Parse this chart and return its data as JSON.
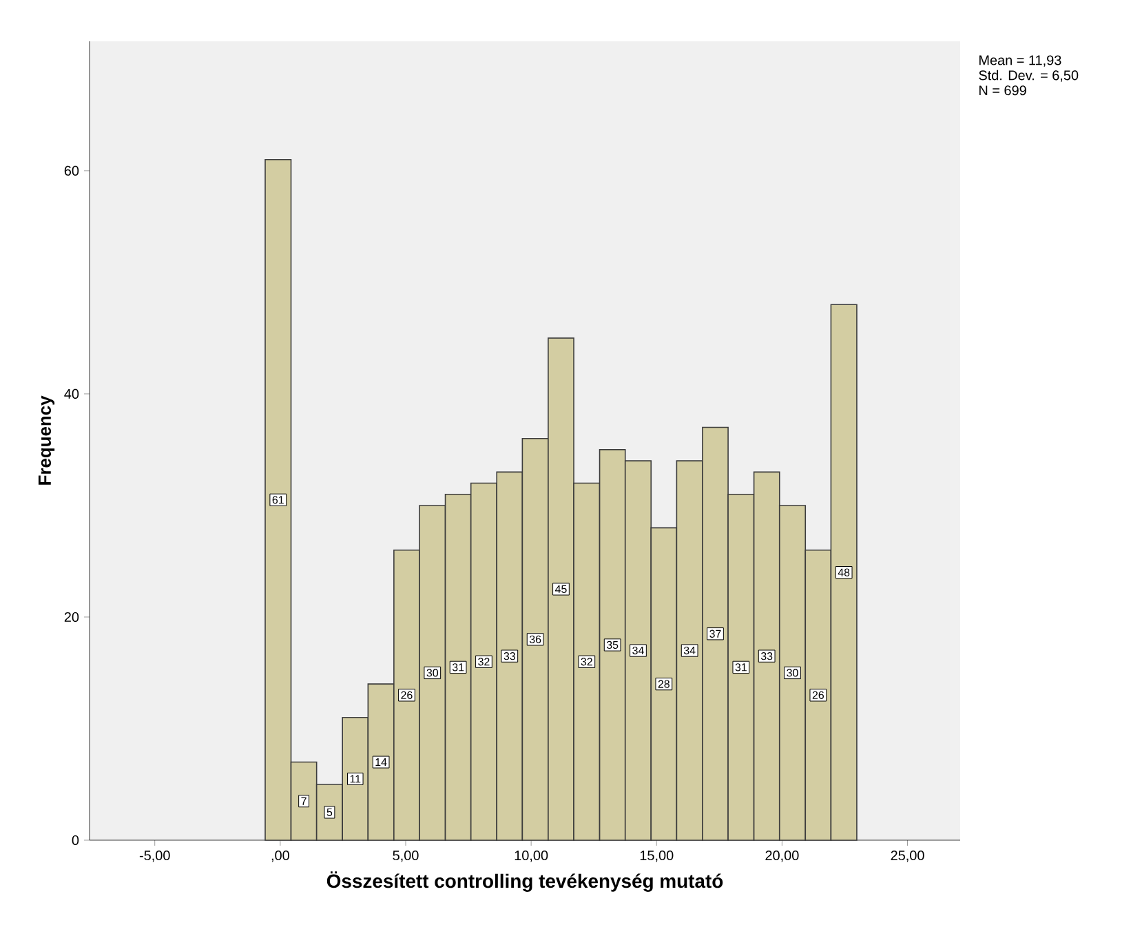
{
  "chart_data": {
    "type": "histogram",
    "xlabel": "Összesített controlling tevékenység mutató",
    "ylabel": "Frequency",
    "bins": [
      -0.6,
      0.43,
      1.45,
      2.48,
      3.5,
      4.53,
      5.55,
      6.58,
      7.6,
      8.63,
      9.65,
      10.68,
      11.7,
      12.73,
      13.75,
      14.78,
      15.8,
      16.83,
      17.85,
      18.88,
      19.9,
      20.93,
      21.95,
      22.98
    ],
    "values": [
      61,
      7,
      5,
      11,
      14,
      26,
      30,
      31,
      32,
      33,
      36,
      45,
      32,
      35,
      34,
      28,
      34,
      37,
      31,
      33,
      30,
      26,
      48
    ],
    "color": "#d3cda2",
    "data_labels": true,
    "xlim": [
      -7.6,
      27.1
    ],
    "ylim": [
      0,
      71.6
    ],
    "xticks": [
      {
        "value": -5,
        "label": "-5,00"
      },
      {
        "value": 0,
        "label": ",00"
      },
      {
        "value": 5,
        "label": "5,00"
      },
      {
        "value": 10,
        "label": "10,00"
      },
      {
        "value": 15,
        "label": "15,00"
      },
      {
        "value": 20,
        "label": "20,00"
      },
      {
        "value": 25,
        "label": "25,00"
      }
    ],
    "yticks": [
      0,
      20,
      40,
      60
    ],
    "annotations": [
      "Mean = 11,93",
      "Std. Dev. = 6,50",
      "N = 699"
    ]
  }
}
